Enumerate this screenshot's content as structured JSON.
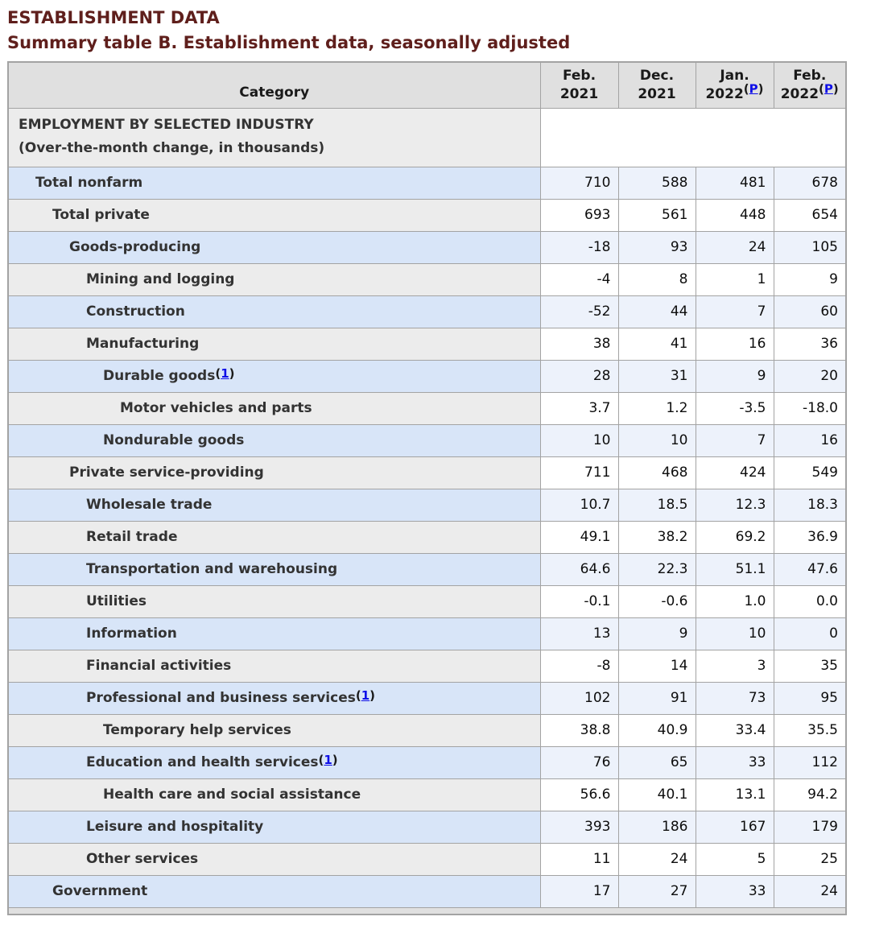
{
  "page": {
    "section_title": "ESTABLISHMENT DATA",
    "table_title": "Summary table B. Establishment data, seasonally adjusted"
  },
  "table": {
    "category_header": "Category",
    "columns": [
      {
        "label_line1": "Feb.",
        "label_line2": "2021",
        "superscript": null
      },
      {
        "label_line1": "Dec.",
        "label_line2": "2021",
        "superscript": null
      },
      {
        "label_line1": "Jan.",
        "label_line2": "2022",
        "superscript": "P"
      },
      {
        "label_line1": "Feb.",
        "label_line2": "2022",
        "superscript": "P"
      }
    ],
    "section_row": {
      "line1": "EMPLOYMENT BY SELECTED INDUSTRY",
      "line2": "(Over-the-month change, in thousands)"
    },
    "rows": [
      {
        "label": "Total nonfarm",
        "indent": 1,
        "footnote": null,
        "values": [
          "710",
          "588",
          "481",
          "678"
        ]
      },
      {
        "label": "Total private",
        "indent": 2,
        "footnote": null,
        "values": [
          "693",
          "561",
          "448",
          "654"
        ]
      },
      {
        "label": "Goods-producing",
        "indent": 3,
        "footnote": null,
        "values": [
          "-18",
          "93",
          "24",
          "105"
        ]
      },
      {
        "label": "Mining and logging",
        "indent": 4,
        "footnote": null,
        "values": [
          "-4",
          "8",
          "1",
          "9"
        ]
      },
      {
        "label": "Construction",
        "indent": 4,
        "footnote": null,
        "values": [
          "-52",
          "44",
          "7",
          "60"
        ]
      },
      {
        "label": "Manufacturing",
        "indent": 4,
        "footnote": null,
        "values": [
          "38",
          "41",
          "16",
          "36"
        ]
      },
      {
        "label": "Durable goods",
        "indent": 5,
        "footnote": "1",
        "values": [
          "28",
          "31",
          "9",
          "20"
        ]
      },
      {
        "label": "Motor vehicles and parts",
        "indent": 6,
        "footnote": null,
        "values": [
          "3.7",
          "1.2",
          "-3.5",
          "-18.0"
        ]
      },
      {
        "label": "Nondurable goods",
        "indent": 5,
        "footnote": null,
        "values": [
          "10",
          "10",
          "7",
          "16"
        ]
      },
      {
        "label": "Private service-providing",
        "indent": 3,
        "footnote": null,
        "values": [
          "711",
          "468",
          "424",
          "549"
        ]
      },
      {
        "label": "Wholesale trade",
        "indent": 4,
        "footnote": null,
        "values": [
          "10.7",
          "18.5",
          "12.3",
          "18.3"
        ]
      },
      {
        "label": "Retail trade",
        "indent": 4,
        "footnote": null,
        "values": [
          "49.1",
          "38.2",
          "69.2",
          "36.9"
        ]
      },
      {
        "label": "Transportation and warehousing",
        "indent": 4,
        "footnote": null,
        "values": [
          "64.6",
          "22.3",
          "51.1",
          "47.6"
        ]
      },
      {
        "label": "Utilities",
        "indent": 4,
        "footnote": null,
        "values": [
          "-0.1",
          "-0.6",
          "1.0",
          "0.0"
        ]
      },
      {
        "label": "Information",
        "indent": 4,
        "footnote": null,
        "values": [
          "13",
          "9",
          "10",
          "0"
        ]
      },
      {
        "label": "Financial activities",
        "indent": 4,
        "footnote": null,
        "values": [
          "-8",
          "14",
          "3",
          "35"
        ]
      },
      {
        "label": "Professional and business services",
        "indent": 4,
        "footnote": "1",
        "values": [
          "102",
          "91",
          "73",
          "95"
        ]
      },
      {
        "label": "Temporary help services",
        "indent": 5,
        "footnote": null,
        "values": [
          "38.8",
          "40.9",
          "33.4",
          "35.5"
        ]
      },
      {
        "label": "Education and health services",
        "indent": 4,
        "footnote": "1",
        "values": [
          "76",
          "65",
          "33",
          "112"
        ]
      },
      {
        "label": "Health care and social assistance",
        "indent": 5,
        "footnote": null,
        "values": [
          "56.6",
          "40.1",
          "13.1",
          "94.2"
        ]
      },
      {
        "label": "Leisure and hospitality",
        "indent": 4,
        "footnote": null,
        "values": [
          "393",
          "186",
          "167",
          "179"
        ]
      },
      {
        "label": "Other services",
        "indent": 4,
        "footnote": null,
        "values": [
          "11",
          "24",
          "5",
          "25"
        ]
      },
      {
        "label": "Government",
        "indent": 2,
        "footnote": null,
        "values": [
          "17",
          "27",
          "33",
          "24"
        ]
      }
    ]
  },
  "colors": {
    "title_maroon": "#5f1f1c",
    "link_blue": "#0f0fe8",
    "header_gray": "#e0e0e0",
    "row_blue_label": "#d8e5f8",
    "row_blue_value": "#edf2fb",
    "row_gray_label": "#ececec",
    "row_white_value": "#ffffff",
    "border_gray": "#a3a3a3",
    "text_dark": "#333333"
  }
}
